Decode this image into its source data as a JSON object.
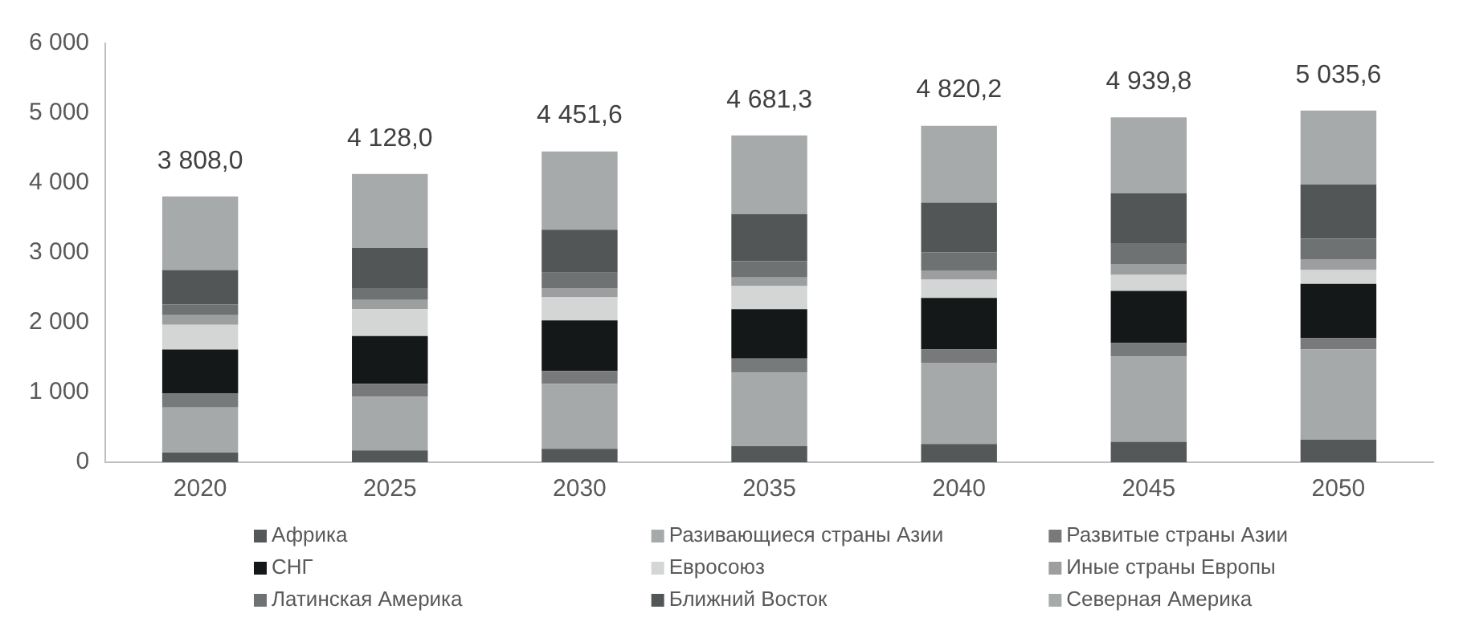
{
  "chart_data": {
    "type": "bar",
    "stacked": true,
    "categories": [
      "2020",
      "2025",
      "2030",
      "2035",
      "2040",
      "2045",
      "2050"
    ],
    "series": [
      {
        "name": "Африка",
        "color": "#545859",
        "values": [
          138,
          169,
          192,
          231,
          262,
          292,
          323
        ]
      },
      {
        "name": "Разивающиеся страны Азии",
        "color": "#a6a9aa",
        "values": [
          646,
          769,
          931,
          1054,
          1162,
          1223,
          1292
        ]
      },
      {
        "name": "Развитые страны Азии",
        "color": "#77797a",
        "values": [
          200,
          185,
          185,
          200,
          192,
          192,
          162
        ]
      },
      {
        "name": "СНГ",
        "color": "#151819",
        "values": [
          631,
          685,
          723,
          708,
          738,
          746,
          777
        ]
      },
      {
        "name": "Евросоюз",
        "color": "#d4d6d5",
        "values": [
          354,
          385,
          331,
          331,
          262,
          231,
          200
        ]
      },
      {
        "name": "Иные страны Европы",
        "color": "#9c9e9f",
        "values": [
          138,
          131,
          131,
          123,
          131,
          154,
          154
        ]
      },
      {
        "name": "Латинская Америка",
        "color": "#6f7273",
        "values": [
          154,
          169,
          223,
          231,
          262,
          300,
          292
        ]
      },
      {
        "name": "Ближний Восток",
        "color": "#535657",
        "values": [
          492,
          577,
          615,
          677,
          708,
          715,
          777
        ]
      },
      {
        "name": "Северная Америка",
        "color": "#a7aaab",
        "values": [
          1055,
          1058,
          1121,
          1126,
          1103,
          1087,
          1059
        ]
      }
    ],
    "totals": [
      "3 808,0",
      "4 128,0",
      "4 451,6",
      "4 681,3",
      "4 820,2",
      "4 939,8",
      "5 035,6"
    ],
    "ylim": [
      0,
      6000
    ],
    "yticks": [
      0,
      {
        "value": 1000,
        "label": "1 000"
      },
      {
        "value": 2000,
        "label": "2 000"
      },
      {
        "value": 3000,
        "label": "3 000"
      },
      {
        "value": 4000,
        "label": "4 000"
      },
      {
        "value": 5000,
        "label": "5 000"
      },
      {
        "value": 6000,
        "label": "6 000"
      }
    ],
    "grid": false,
    "legend": "bottom"
  }
}
